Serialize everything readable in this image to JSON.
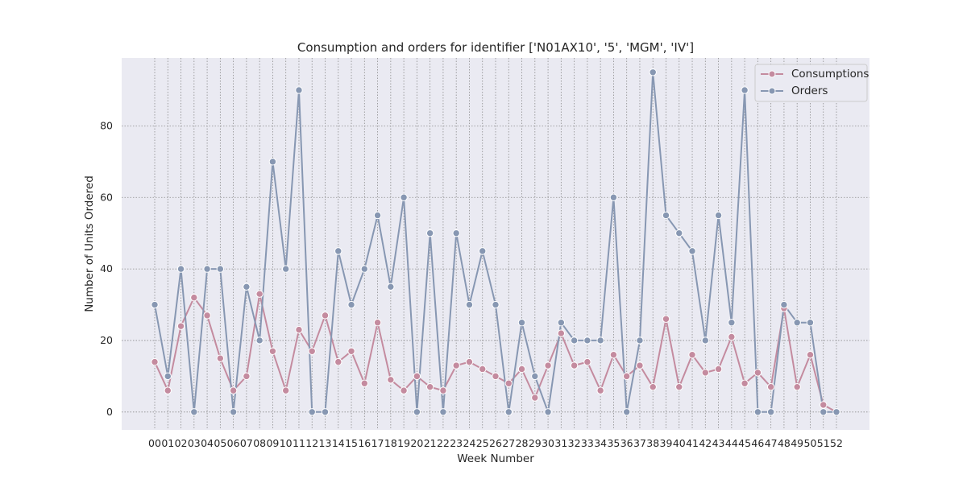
{
  "chart_data": {
    "type": "line",
    "title": "Consumption and orders for identifier ['N01AX10', '5', 'MGM', 'IV']",
    "xlabel": "Week Number",
    "ylabel": "Number of Units Ordered",
    "categories": [
      "00",
      "01",
      "02",
      "03",
      "04",
      "05",
      "06",
      "07",
      "08",
      "09",
      "10",
      "11",
      "12",
      "13",
      "14",
      "15",
      "16",
      "17",
      "18",
      "19",
      "20",
      "21",
      "22",
      "23",
      "24",
      "25",
      "26",
      "27",
      "28",
      "29",
      "30",
      "31",
      "32",
      "33",
      "34",
      "35",
      "36",
      "37",
      "38",
      "39",
      "40",
      "41",
      "42",
      "43",
      "44",
      "45",
      "46",
      "47",
      "48",
      "49",
      "50",
      "51",
      "52"
    ],
    "ylim": [
      -5,
      99
    ],
    "yticks": [
      0,
      20,
      40,
      60,
      80
    ],
    "grid": true,
    "legend_position": "top-right",
    "series": [
      {
        "name": "Consumptions",
        "color": "#c48b9f",
        "values": [
          14,
          6,
          24,
          32,
          27,
          15,
          6,
          10,
          33,
          17,
          6,
          23,
          17,
          27,
          14,
          17,
          8,
          25,
          9,
          6,
          10,
          7,
          6,
          13,
          14,
          12,
          10,
          8,
          12,
          4,
          13,
          22,
          13,
          14,
          6,
          16,
          10,
          13,
          7,
          26,
          7,
          16,
          11,
          12,
          21,
          8,
          11,
          7,
          29,
          7,
          16,
          2,
          0
        ]
      },
      {
        "name": "Orders",
        "color": "#8797b2",
        "values": [
          30,
          10,
          40,
          0,
          40,
          40,
          0,
          35,
          20,
          70,
          40,
          90,
          0,
          0,
          45,
          30,
          40,
          55,
          35,
          60,
          0,
          50,
          0,
          50,
          30,
          45,
          30,
          0,
          25,
          10,
          0,
          25,
          20,
          20,
          20,
          60,
          0,
          20,
          95,
          55,
          50,
          45,
          20,
          55,
          25,
          90,
          0,
          0,
          30,
          25,
          25,
          0,
          0
        ]
      }
    ]
  }
}
